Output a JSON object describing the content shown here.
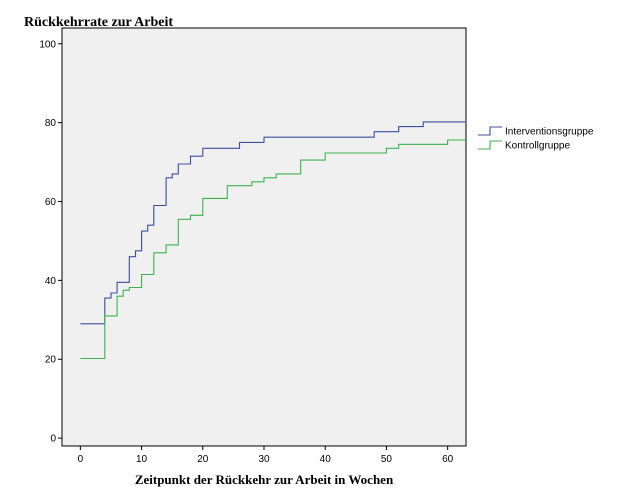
{
  "chart_data": {
    "type": "line",
    "step": true,
    "title": "Rückkehrrate zur Arbeit",
    "xlabel": "Zeitpunkt der Rückkehr zur Arbeit in Wochen",
    "ylabel": "",
    "xlim": [
      -3,
      63
    ],
    "ylim": [
      -2,
      104
    ],
    "xticks": [
      0,
      10,
      20,
      30,
      40,
      50,
      60
    ],
    "yticks": [
      0,
      20,
      40,
      60,
      80,
      100
    ],
    "grid": false,
    "plot_background": "#f0f0f0",
    "legend_position": "right",
    "series": [
      {
        "name": "Interventionsgruppe",
        "color": "#3b4fa0",
        "x": [
          0,
          4,
          5,
          6,
          8,
          9,
          10,
          11,
          12,
          14,
          15,
          16,
          18,
          20,
          26,
          30,
          48,
          52,
          56,
          63
        ],
        "y": [
          29,
          35.5,
          36.8,
          39.5,
          46,
          47.5,
          52.5,
          54,
          59,
          66,
          67,
          69.5,
          71.5,
          73.5,
          75,
          76.3,
          77.7,
          79,
          80.2,
          80.2
        ]
      },
      {
        "name": "Kontrollgruppe",
        "color": "#3cb44b",
        "x": [
          0,
          4,
          6,
          7,
          8,
          10,
          12,
          14,
          16,
          18,
          20,
          24,
          28,
          30,
          32,
          36,
          40,
          50,
          52,
          60,
          63
        ],
        "y": [
          20.2,
          31,
          36,
          37.5,
          38.2,
          41.5,
          47,
          49,
          55.5,
          56.5,
          60.8,
          64,
          65,
          66,
          67,
          70.5,
          72.3,
          73.5,
          74.5,
          75.6,
          75.6
        ]
      }
    ]
  }
}
